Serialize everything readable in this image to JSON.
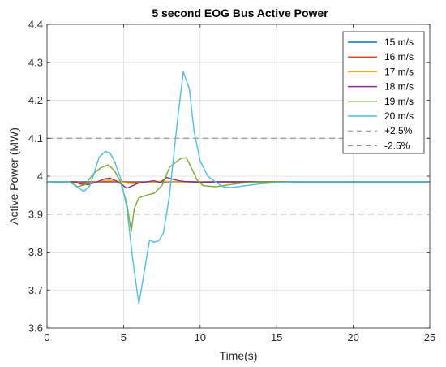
{
  "chart_data": {
    "type": "line",
    "title": "5 second EOG Bus Active Power",
    "xlabel": "Time(s)",
    "ylabel": "Active Power (MW)",
    "xlim": [
      0,
      25
    ],
    "ylim": [
      3.6,
      4.4
    ],
    "xticks": [
      0,
      5,
      10,
      15,
      20,
      25
    ],
    "yticks": [
      3.6,
      3.7,
      3.8,
      3.9,
      4,
      4.1,
      4.2,
      4.3,
      4.4
    ],
    "xtick_labels": [
      "0",
      "5",
      "10",
      "15",
      "20",
      "25"
    ],
    "ytick_labels": [
      "3.6",
      "3.7",
      "3.8",
      "3.9",
      "4",
      "4.1",
      "4.2",
      "4.3",
      "4.4"
    ],
    "grid": true,
    "legend_position": "top-right",
    "series": [
      {
        "name": "15 m/s",
        "color": "#0072BD",
        "x": [
          0,
          25
        ],
        "y": [
          3.985,
          3.985
        ]
      },
      {
        "name": "16 m/s",
        "color": "#D95319",
        "x": [
          0,
          2,
          2.5,
          3,
          4,
          5,
          6,
          7,
          8,
          9,
          10,
          25
        ],
        "y": [
          3.985,
          3.985,
          3.983,
          3.985,
          3.986,
          3.985,
          3.984,
          3.985,
          3.986,
          3.985,
          3.985,
          3.985
        ]
      },
      {
        "name": "17 m/s",
        "color": "#EDB120",
        "x": [
          0,
          1.5,
          2,
          2.5,
          3,
          3.5,
          4,
          4.5,
          5,
          5.5,
          6,
          6.5,
          7,
          7.5,
          8,
          8.5,
          9,
          9.5,
          10,
          11,
          25
        ],
        "y": [
          3.985,
          3.985,
          3.982,
          3.98,
          3.983,
          3.988,
          3.99,
          3.987,
          3.983,
          3.98,
          3.982,
          3.984,
          3.985,
          3.987,
          3.986,
          3.985,
          3.984,
          3.985,
          3.985,
          3.985,
          3.985
        ]
      },
      {
        "name": "18 m/s",
        "color": "#7E2F8E",
        "x": [
          0,
          1.8,
          2.2,
          2.7,
          3.2,
          3.7,
          4.1,
          4.5,
          4.9,
          5.2,
          5.6,
          6.0,
          6.5,
          7.0,
          7.4,
          7.8,
          8.2,
          8.6,
          9.0,
          9.5,
          10,
          11,
          12,
          25
        ],
        "y": [
          3.985,
          3.985,
          3.979,
          3.978,
          3.984,
          3.992,
          3.995,
          3.988,
          3.978,
          3.968,
          3.975,
          3.982,
          3.985,
          3.988,
          3.983,
          3.997,
          3.992,
          3.988,
          3.986,
          3.985,
          3.984,
          3.985,
          3.985,
          3.985
        ]
      },
      {
        "name": "19 m/s",
        "color": "#77AC30",
        "x": [
          0,
          1.5,
          2.0,
          2.5,
          3.0,
          3.5,
          4.0,
          4.4,
          4.8,
          5.2,
          5.5,
          5.7,
          6.0,
          6.5,
          7.0,
          7.5,
          8.0,
          8.5,
          8.8,
          9.1,
          9.4,
          9.8,
          10.2,
          11,
          12,
          13,
          14,
          25
        ],
        "y": [
          3.985,
          3.985,
          3.972,
          3.978,
          4.005,
          4.022,
          4.03,
          4.015,
          3.985,
          3.93,
          3.855,
          3.915,
          3.943,
          3.95,
          3.955,
          3.975,
          4.023,
          4.04,
          4.048,
          4.048,
          4.025,
          3.99,
          3.975,
          3.972,
          3.978,
          3.983,
          3.985,
          3.985
        ]
      },
      {
        "name": "20 m/s",
        "color": "#4DBEEE",
        "x": [
          0,
          1.5,
          2.0,
          2.4,
          2.8,
          3.1,
          3.4,
          3.8,
          4.1,
          4.4,
          4.8,
          5.2,
          5.6,
          6.0,
          6.4,
          6.7,
          7.0,
          7.3,
          7.6,
          8.0,
          8.5,
          8.9,
          9.3,
          9.6,
          10.0,
          10.5,
          11,
          11.5,
          12,
          13,
          14,
          15,
          16,
          18,
          25
        ],
        "y": [
          3.985,
          3.985,
          3.97,
          3.96,
          3.975,
          4.01,
          4.05,
          4.065,
          4.062,
          4.04,
          3.995,
          3.92,
          3.78,
          3.663,
          3.76,
          3.832,
          3.826,
          3.83,
          3.85,
          3.95,
          4.14,
          4.275,
          4.23,
          4.12,
          4.04,
          4.0,
          3.985,
          3.972,
          3.97,
          3.975,
          3.98,
          3.983,
          3.985,
          3.985,
          3.985
        ]
      },
      {
        "name": "+2.5%",
        "color": "#7f7f7f",
        "dashed": true,
        "x": [
          0,
          25
        ],
        "y": [
          4.1,
          4.1
        ]
      },
      {
        "name": "-2.5%",
        "color": "#7f7f7f",
        "dashed": true,
        "x": [
          0,
          25
        ],
        "y": [
          3.9,
          3.9
        ]
      }
    ]
  }
}
